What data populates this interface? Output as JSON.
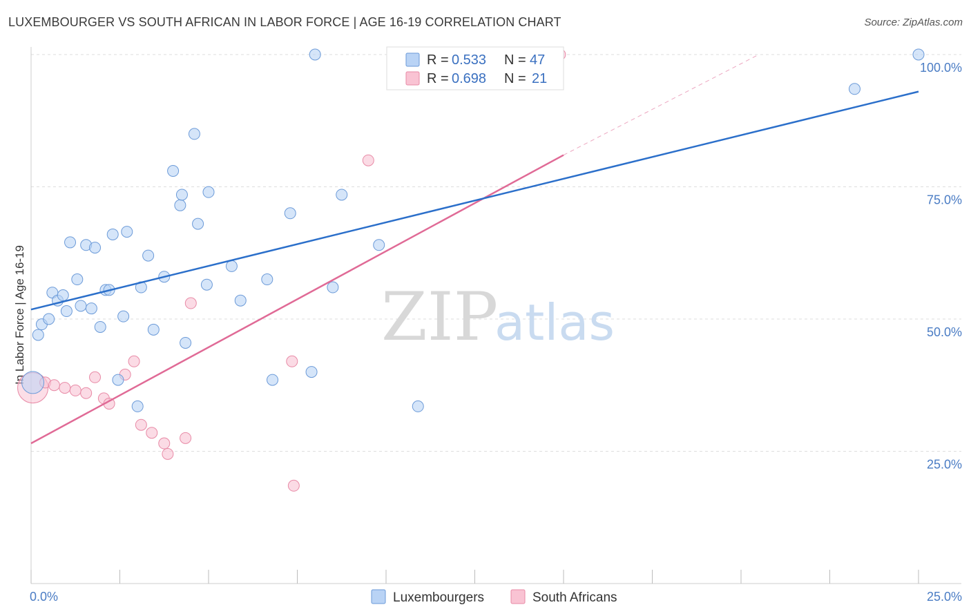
{
  "header": {
    "title": "LUXEMBOURGER VS SOUTH AFRICAN IN LABOR FORCE | AGE 16-19 CORRELATION CHART",
    "source": "Source: ZipAtlas.com"
  },
  "watermark": {
    "zip": "ZIP",
    "atlas": "atlas"
  },
  "legend": {
    "items": [
      {
        "r_label": "R =",
        "r_value": "0.533",
        "n_label": "N =",
        "n_value": "47"
      },
      {
        "r_label": "R =",
        "r_value": "0.698",
        "n_label": "N =",
        "n_value": "21"
      }
    ]
  },
  "bottom_legend": [
    "Luxembourgers",
    "South Africans"
  ],
  "colors": {
    "lux_fill": "#b9d3f5",
    "lux_stroke": "#6b9ad8",
    "lux_line": "#2b6fca",
    "sa_fill": "#f9c3d3",
    "sa_stroke": "#e88aa6",
    "sa_line": "#e06a96",
    "grid": "#dddddd",
    "axis_text": "#4a7cc4"
  },
  "chart_data": {
    "type": "scatter",
    "title": "LUXEMBOURGER VS SOUTH AFRICAN IN LABOR FORCE | AGE 16-19 CORRELATION CHART",
    "xlabel": "",
    "ylabel": "In Labor Force | Age 16-19",
    "xlim": [
      0,
      25
    ],
    "ylim": [
      0,
      102
    ],
    "x_tick_labels": [
      "0.0%",
      "25.0%"
    ],
    "y_ticks": [
      25,
      50,
      75,
      100
    ],
    "y_tick_labels": [
      "25.0%",
      "50.0%",
      "75.0%",
      "100.0%"
    ],
    "grid": true,
    "legend_position": "top-center",
    "series": [
      {
        "name": "Luxembourgers",
        "r": 0.533,
        "n": 47,
        "trend": {
          "x": [
            0,
            25
          ],
          "y": [
            51.8,
            93
          ]
        },
        "points": [
          {
            "x": 0.05,
            "y": 38,
            "big": true
          },
          {
            "x": 0.2,
            "y": 47
          },
          {
            "x": 0.3,
            "y": 49
          },
          {
            "x": 0.5,
            "y": 50
          },
          {
            "x": 0.6,
            "y": 55
          },
          {
            "x": 0.75,
            "y": 53.5
          },
          {
            "x": 0.9,
            "y": 54.5
          },
          {
            "x": 1.0,
            "y": 51.5
          },
          {
            "x": 1.1,
            "y": 64.5
          },
          {
            "x": 1.3,
            "y": 57.5
          },
          {
            "x": 1.4,
            "y": 52.5
          },
          {
            "x": 1.55,
            "y": 64
          },
          {
            "x": 1.7,
            "y": 52
          },
          {
            "x": 1.8,
            "y": 63.5
          },
          {
            "x": 1.95,
            "y": 48.5
          },
          {
            "x": 2.1,
            "y": 55.5
          },
          {
            "x": 2.2,
            "y": 55.5
          },
          {
            "x": 2.3,
            "y": 66
          },
          {
            "x": 2.45,
            "y": 38.5
          },
          {
            "x": 2.6,
            "y": 50.5
          },
          {
            "x": 2.7,
            "y": 66.5
          },
          {
            "x": 3.0,
            "y": 33.5
          },
          {
            "x": 3.1,
            "y": 56
          },
          {
            "x": 3.3,
            "y": 62
          },
          {
            "x": 3.45,
            "y": 48
          },
          {
            "x": 3.75,
            "y": 58
          },
          {
            "x": 4.0,
            "y": 78
          },
          {
            "x": 4.2,
            "y": 71.5
          },
          {
            "x": 4.25,
            "y": 73.5
          },
          {
            "x": 4.35,
            "y": 45.5
          },
          {
            "x": 4.6,
            "y": 85
          },
          {
            "x": 4.7,
            "y": 68
          },
          {
            "x": 4.95,
            "y": 56.5
          },
          {
            "x": 5.0,
            "y": 74
          },
          {
            "x": 5.65,
            "y": 60
          },
          {
            "x": 5.9,
            "y": 53.5
          },
          {
            "x": 6.65,
            "y": 57.5
          },
          {
            "x": 6.8,
            "y": 38.5
          },
          {
            "x": 7.3,
            "y": 70
          },
          {
            "x": 7.9,
            "y": 40
          },
          {
            "x": 8.0,
            "y": 100
          },
          {
            "x": 8.5,
            "y": 56
          },
          {
            "x": 8.75,
            "y": 73.5
          },
          {
            "x": 9.8,
            "y": 64
          },
          {
            "x": 10.9,
            "y": 33.5
          },
          {
            "x": 23.2,
            "y": 93.5
          },
          {
            "x": 25.0,
            "y": 100
          }
        ]
      },
      {
        "name": "South Africans",
        "r": 0.698,
        "n": 21,
        "trend": {
          "x": [
            0,
            15
          ],
          "y": [
            26.5,
            81
          ]
        },
        "trend_dashed": {
          "x": [
            15,
            20.5
          ],
          "y": [
            81,
            100
          ]
        },
        "points": [
          {
            "x": 0.05,
            "y": 37,
            "big": true
          },
          {
            "x": 0.4,
            "y": 38
          },
          {
            "x": 0.65,
            "y": 37.5
          },
          {
            "x": 0.95,
            "y": 37
          },
          {
            "x": 1.25,
            "y": 36.5
          },
          {
            "x": 1.55,
            "y": 36
          },
          {
            "x": 1.8,
            "y": 39
          },
          {
            "x": 2.05,
            "y": 35
          },
          {
            "x": 2.2,
            "y": 34
          },
          {
            "x": 2.65,
            "y": 39.5
          },
          {
            "x": 2.9,
            "y": 42
          },
          {
            "x": 3.1,
            "y": 30
          },
          {
            "x": 3.4,
            "y": 28.5
          },
          {
            "x": 3.75,
            "y": 26.5
          },
          {
            "x": 3.85,
            "y": 24.5
          },
          {
            "x": 4.35,
            "y": 27.5
          },
          {
            "x": 4.5,
            "y": 53
          },
          {
            "x": 7.35,
            "y": 42
          },
          {
            "x": 7.4,
            "y": 18.5
          },
          {
            "x": 9.5,
            "y": 80
          },
          {
            "x": 14.9,
            "y": 100
          }
        ]
      }
    ]
  }
}
